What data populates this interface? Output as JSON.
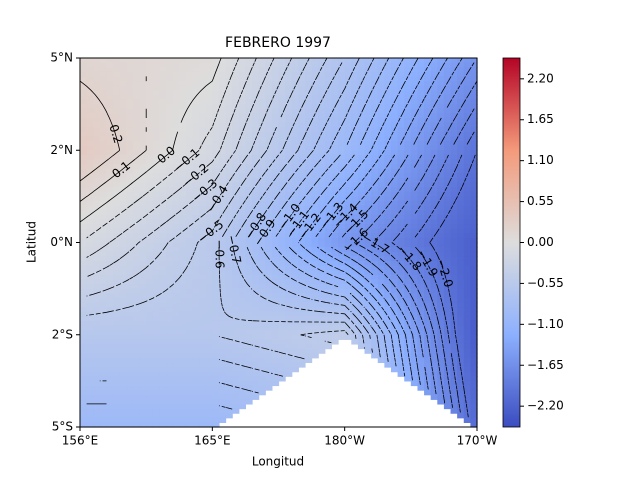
{
  "chart_data": {
    "type": "contour",
    "title": "FEBRERO 1997",
    "x_label": "Longitud",
    "y_label": "Latitud",
    "xlim": [
      0,
      3
    ],
    "xticks": [
      {
        "value": 0,
        "label": "156°E"
      },
      {
        "value": 1,
        "label": "165°E"
      },
      {
        "value": 2,
        "label": "180°W"
      },
      {
        "value": 3,
        "label": "170°W"
      }
    ],
    "ylim": [
      4,
      0
    ],
    "yticks": [
      {
        "value": 0,
        "label": "5°N"
      },
      {
        "value": 1,
        "label": "2°N"
      },
      {
        "value": 2,
        "label": "0°N"
      },
      {
        "value": 3,
        "label": "2°S"
      },
      {
        "value": 4,
        "label": "5°S"
      }
    ],
    "z": [
      [
        0.15,
        0.05,
        -0.7,
        -1.6
      ],
      [
        0.35,
        -0.15,
        -1.0,
        -2.0
      ],
      [
        -0.1,
        -0.55,
        -1.55,
        -2.25
      ],
      [
        -0.6,
        -0.6,
        -0.45,
        -2.3
      ],
      [
        -1.0,
        -1.0,
        null,
        -2.1
      ]
    ],
    "levels": [
      0.2,
      0.1,
      0,
      -0.1,
      -0.2,
      -0.3,
      -0.4,
      -0.5,
      -0.6,
      -0.7,
      -0.8,
      -0.9,
      -1.0,
      -1.1,
      -1.2,
      -1.3,
      -1.4,
      -1.5,
      -1.6,
      -1.7,
      -1.8,
      -1.9,
      -2.0
    ],
    "level_labels": [
      "0.2",
      "0.1",
      "0.0",
      "−0.1",
      "−0.2",
      "−0.3",
      "−0.4",
      "−0.5",
      "−0.6",
      "−0.7",
      "−0.8",
      "−0.9",
      "−1.0",
      "−1.1",
      "−1.2",
      "−1.3",
      "−1.4",
      "−1.5",
      "−1.6",
      "−1.7",
      "−1.8",
      "−1.9",
      "−2.0"
    ],
    "colormap": "coolwarm",
    "clim": [
      -2.48,
      2.48
    ],
    "cticks": [
      {
        "value": 2.2,
        "label": "2.20"
      },
      {
        "value": 1.65,
        "label": "1.65"
      },
      {
        "value": 1.1,
        "label": "1.10"
      },
      {
        "value": 0.55,
        "label": "0.55"
      },
      {
        "value": 0,
        "label": "0.00"
      },
      {
        "value": -0.55,
        "label": "−0.55"
      },
      {
        "value": -1.1,
        "label": "−1.10"
      },
      {
        "value": -1.65,
        "label": "−1.65"
      },
      {
        "value": -2.2,
        "label": "−2.20"
      }
    ]
  }
}
